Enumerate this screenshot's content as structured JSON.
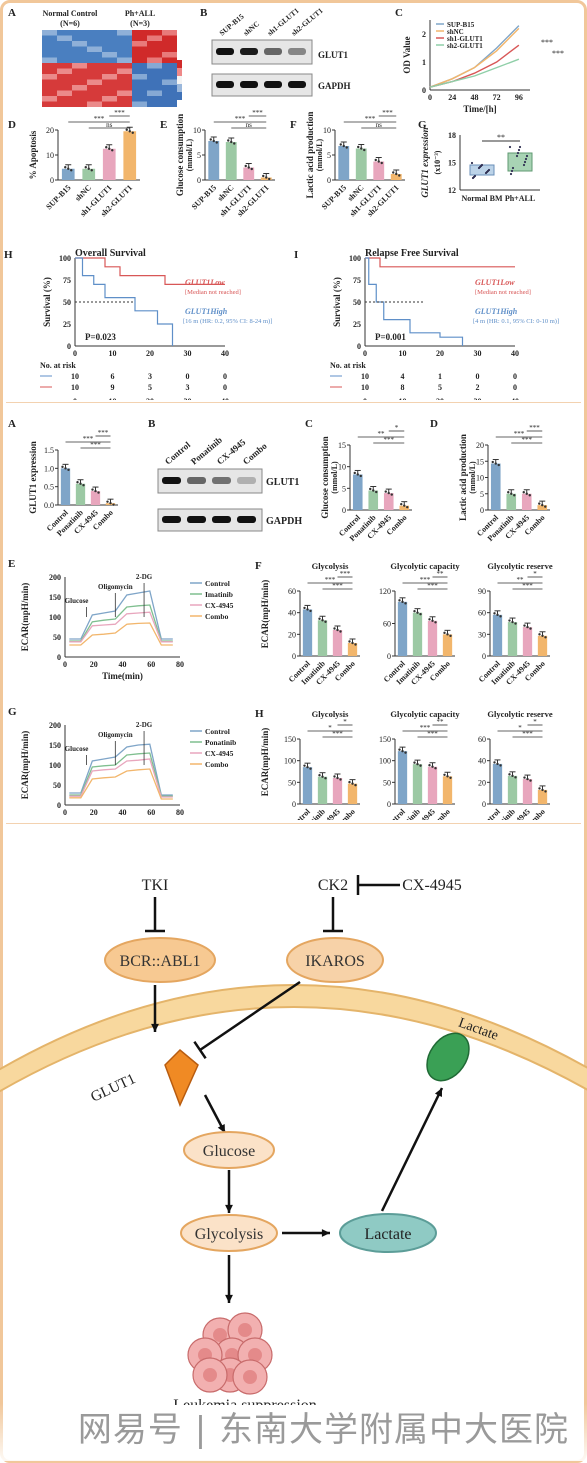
{
  "watermark": "网易号 | 东南大学附属中大医院",
  "colors": {
    "blue": "#7fa5c8",
    "green": "#9cc9a4",
    "pink": "#e8a6bd",
    "orange": "#f2b66c",
    "red": "#d85757",
    "bodyFill": "#f8d89e",
    "bodyStroke": "#e4b46a",
    "oval": "#f7c992",
    "lactate": "#8fcac4"
  },
  "fig1": {
    "A": {
      "letter": "A",
      "normal_label": "Normal Control",
      "normal_n": "(N=6)",
      "ph_label": "Ph+ALL",
      "ph_n": "(N=3)"
    },
    "B": {
      "letter": "B",
      "lanes": [
        "SUP-B15",
        "shNC",
        "sh1-GLUT1",
        "sh2-GLUT1"
      ],
      "proteins": [
        "GLUT1",
        "GAPDH"
      ]
    },
    "C": {
      "letter": "C",
      "ylabel": "OD Value",
      "xlabel": "Time/[h]",
      "xticks": [
        "0",
        "24",
        "48",
        "72",
        "96"
      ],
      "yticks": [
        "0",
        "1",
        "2"
      ],
      "legend": [
        "SUP-B15",
        "shNC",
        "sh1-GLUT1",
        "sh2-GLUT1"
      ],
      "sig": [
        "***",
        "***"
      ]
    },
    "D": {
      "letter": "D",
      "ylabel": "% Apoptosis",
      "categories": [
        "SUP-B15",
        "shNC",
        "sh1-GLUT1",
        "sh2-GLUT1"
      ],
      "yticks": [
        "0",
        "10",
        "20"
      ],
      "values": [
        4.5,
        4.5,
        12.5,
        19.5
      ],
      "sig": [
        "ns",
        "***",
        "***"
      ]
    },
    "E": {
      "letter": "E",
      "ylabel": "Glucose consumption",
      "ylabel2": "(mmol/L)",
      "categories": [
        "SUP-B15",
        "shNC",
        "sh1-GLUT1",
        "sh2-GLUT1"
      ],
      "yticks": [
        "0",
        "5",
        "10"
      ],
      "values": [
        7.8,
        7.6,
        2.5,
        0.5
      ],
      "sig": [
        "ns",
        "***",
        "***"
      ]
    },
    "F": {
      "letter": "F",
      "ylabel": "Lactic acid production",
      "ylabel2": "(mmol/L)",
      "categories": [
        "SUP-B15",
        "shNC",
        "sh1-GLUT1",
        "sh2-GLUT1"
      ],
      "yticks": [
        "0",
        "5",
        "10"
      ],
      "values": [
        6.8,
        6.3,
        3.7,
        1.2
      ],
      "sig": [
        "ns",
        "***",
        "***"
      ]
    },
    "G": {
      "letter": "G",
      "ylabel": "GLUT1 expression",
      "ylabel2": "(x10⁻³)",
      "categories": [
        "Normal BM",
        "Ph+ALL"
      ],
      "yticks": [
        "12",
        "15",
        "18"
      ],
      "sig": "**"
    },
    "H": {
      "letter": "H",
      "title": "Overall Survival",
      "ylabel": "Survival (%)",
      "xlabel": "Months",
      "low_label": "GLUT1",
      "low_sup": "Low",
      "low_sub": "[Median not reached]",
      "high_label": "GLUT1",
      "high_sup": "High",
      "high_sub": "[16 m (HR: 0.2, 95% CI: 8-24 m)]",
      "p": "P=0.023",
      "xticks": [
        "0",
        "10",
        "20",
        "30",
        "40"
      ],
      "yticks": [
        "0",
        "25",
        "50",
        "75",
        "100"
      ],
      "risk_title": "No. at risk",
      "risk_rows": [
        [
          "10",
          "6",
          "3",
          "0",
          "0"
        ],
        [
          "10",
          "9",
          "5",
          "3",
          "0"
        ]
      ]
    },
    "I": {
      "letter": "I",
      "title": "Relapse Free Survival",
      "ylabel": "Survival (%)",
      "xlabel": "Months",
      "low_label": "GLUT1",
      "low_sup": "Low",
      "low_sub": "[Median not reached]",
      "high_label": "GLUT1",
      "high_sup": "High",
      "high_sub": "[4 m (HR: 0.1, 95% CI: 0-10 m)]",
      "p": "P=0.001",
      "xticks": [
        "0",
        "10",
        "20",
        "30",
        "40"
      ],
      "yticks": [
        "0",
        "25",
        "50",
        "75",
        "100"
      ],
      "risk_title": "No. at risk",
      "risk_rows": [
        [
          "10",
          "4",
          "1",
          "0",
          "0"
        ],
        [
          "10",
          "8",
          "5",
          "2",
          "0"
        ]
      ]
    }
  },
  "fig2": {
    "A": {
      "letter": "A",
      "ylabel": "GLUT1 expression",
      "categories": [
        "Control",
        "Ponatinib",
        "CX-4945",
        "Combo"
      ],
      "yticks": [
        "0.0",
        "0.5",
        "1.0",
        "1.5"
      ],
      "values": [
        1.0,
        0.58,
        0.38,
        0.05
      ],
      "sig": [
        "***",
        "***",
        "***"
      ]
    },
    "B": {
      "letter": "B",
      "lanes": [
        "Control",
        "Ponatinib",
        "CX-4945",
        "Combo"
      ],
      "proteins": [
        "GLUT1",
        "GAPDH"
      ]
    },
    "C": {
      "letter": "C",
      "ylabel": "Glucose consumption",
      "ylabel2": "(mmol/L)",
      "categories": [
        "Control",
        "Ponatinib",
        "CX-4945",
        "Combo"
      ],
      "yticks": [
        "0",
        "5",
        "10",
        "15"
      ],
      "values": [
        8.2,
        4.5,
        3.9,
        1.0
      ],
      "sig": [
        "***",
        "**",
        "*"
      ]
    },
    "D": {
      "letter": "D",
      "ylabel": "Lactic acid production",
      "ylabel2": "(mmol/L)",
      "categories": [
        "Control",
        "Ponatinib",
        "CX-4945",
        "Combo"
      ],
      "yticks": [
        "0",
        "5",
        "10",
        "15",
        "20"
      ],
      "values": [
        14.3,
        5.0,
        5.0,
        1.5
      ],
      "sig": [
        "***",
        "***",
        "***"
      ]
    },
    "E": {
      "letter": "E",
      "ylabel": "ECAR(mpH/min)",
      "xlabel": "Time(min)",
      "xticks": [
        "0",
        "20",
        "40",
        "60",
        "80"
      ],
      "yticks": [
        "0",
        "50",
        "100",
        "150",
        "200"
      ],
      "legend": [
        "Control",
        "Imatinib",
        "CX-4945",
        "Combo"
      ],
      "annotations": [
        "Glucose",
        "Oligomycin",
        "2-DG"
      ]
    },
    "F": {
      "letter": "F",
      "ylabel": "ECAR(mpH/min)",
      "categories": [
        "Control",
        "Imatinib",
        "CX-4945",
        "Combo"
      ],
      "panels": [
        {
          "title": "Glycolysis",
          "yticks": [
            "0",
            "20",
            "40",
            "60"
          ],
          "ymax": 60,
          "values": [
            43,
            33,
            24,
            12
          ],
          "sig": [
            "***",
            "***",
            "***"
          ]
        },
        {
          "title": "Glycolytic capacity",
          "yticks": [
            "0",
            "60",
            "120"
          ],
          "ymax": 120,
          "values": [
            100,
            80,
            65,
            40
          ],
          "sig": [
            "***",
            "***",
            "**"
          ]
        },
        {
          "title": "Glycolytic reserve",
          "yticks": [
            "0",
            "30",
            "60",
            "90"
          ],
          "ymax": 90,
          "values": [
            57,
            47,
            40,
            28
          ],
          "sig": [
            "***",
            "**",
            "*"
          ]
        }
      ]
    },
    "G": {
      "letter": "G",
      "ylabel": "ECAR(mpH/min)",
      "xlabel": "Time(min)",
      "xticks": [
        "0",
        "20",
        "40",
        "60",
        "80"
      ],
      "yticks": [
        "0",
        "50",
        "100",
        "150",
        "200"
      ],
      "legend": [
        "Control",
        "Ponatinib",
        "CX-4945",
        "Combo"
      ],
      "annotations": [
        "Glucose",
        "Oligomycin",
        "2-DG"
      ]
    },
    "H": {
      "letter": "H",
      "ylabel": "ECAR(mpH/min)",
      "categories": [
        "Control",
        "Ponatinib",
        "CX-4945",
        "Combo"
      ],
      "panels": [
        {
          "title": "Glycolysis",
          "yticks": [
            "0",
            "50",
            "100",
            "150"
          ],
          "ymax": 150,
          "values": [
            85,
            63,
            60,
            47
          ],
          "sig": [
            "***",
            "*",
            "*"
          ]
        },
        {
          "title": "Glycolytic capacity",
          "yticks": [
            "0",
            "50",
            "100",
            "150"
          ],
          "ymax": 150,
          "values": [
            122,
            92,
            86,
            64
          ],
          "sig": [
            "***",
            "***",
            "**"
          ]
        },
        {
          "title": "Glycolytic reserve",
          "yticks": [
            "0",
            "20",
            "40",
            "60"
          ],
          "ymax": 60,
          "values": [
            37,
            26,
            23,
            13
          ],
          "sig": [
            "***",
            "*",
            "*"
          ]
        }
      ]
    }
  },
  "diagram": {
    "tki": "TKI",
    "ck2": "CK2",
    "cx": "CX-4945",
    "bcr": "BCR::ABL1",
    "ikaros": "IKAROS",
    "glut1": "GLUT1",
    "lactate_channel": "Lactate",
    "glucose": "Glucose",
    "glycolysis": "Glycolysis",
    "lactate": "Lactate",
    "suppression": "Leukemia suppression"
  },
  "chart_data": [
    {
      "panel": "Fig1-C",
      "type": "line",
      "x": [
        0,
        24,
        48,
        72,
        96
      ],
      "xlabel": "Time/[h]",
      "ylabel": "OD Value",
      "series": [
        {
          "name": "SUP-B15",
          "values": [
            0.1,
            0.4,
            0.8,
            1.5,
            2.3
          ]
        },
        {
          "name": "shNC",
          "values": [
            0.1,
            0.4,
            0.8,
            1.4,
            2.2
          ]
        },
        {
          "name": "sh1-GLUT1",
          "values": [
            0.1,
            0.3,
            0.6,
            1.0,
            1.6
          ]
        },
        {
          "name": "sh2-GLUT1",
          "values": [
            0.1,
            0.3,
            0.5,
            0.8,
            1.1
          ]
        }
      ]
    },
    {
      "panel": "Fig1-D",
      "type": "bar",
      "categories": [
        "SUP-B15",
        "shNC",
        "sh1-GLUT1",
        "sh2-GLUT1"
      ],
      "values": [
        4.5,
        4.5,
        12.5,
        19.5
      ],
      "ylabel": "% Apoptosis"
    },
    {
      "panel": "Fig1-E",
      "type": "bar",
      "categories": [
        "SUP-B15",
        "shNC",
        "sh1-GLUT1",
        "sh2-GLUT1"
      ],
      "values": [
        7.8,
        7.6,
        2.5,
        0.5
      ],
      "ylabel": "Glucose consumption (mmol/L)"
    },
    {
      "panel": "Fig1-F",
      "type": "bar",
      "categories": [
        "SUP-B15",
        "shNC",
        "sh1-GLUT1",
        "sh2-GLUT1"
      ],
      "values": [
        6.8,
        6.3,
        3.7,
        1.2
      ],
      "ylabel": "Lactic acid production (mmol/L)"
    },
    {
      "panel": "Fig2-A",
      "type": "bar",
      "categories": [
        "Control",
        "Ponatinib",
        "CX-4945",
        "Combo"
      ],
      "values": [
        1.0,
        0.58,
        0.38,
        0.05
      ],
      "ylabel": "GLUT1 expression"
    },
    {
      "panel": "Fig2-C",
      "type": "bar",
      "categories": [
        "Control",
        "Ponatinib",
        "CX-4945",
        "Combo"
      ],
      "values": [
        8.2,
        4.5,
        3.9,
        1.0
      ],
      "ylabel": "Glucose consumption (mmol/L)"
    },
    {
      "panel": "Fig2-D",
      "type": "bar",
      "categories": [
        "Control",
        "Ponatinib",
        "CX-4945",
        "Combo"
      ],
      "values": [
        14.3,
        5.0,
        5.0,
        1.5
      ],
      "ylabel": "Lactic acid production (mmol/L)"
    },
    {
      "panel": "Fig2-E",
      "type": "line",
      "xlabel": "Time(min)",
      "ylabel": "ECAR(mpH/min)",
      "x": [
        3,
        11,
        19,
        27,
        35,
        43,
        51,
        59,
        67,
        75
      ],
      "series": [
        {
          "name": "Control",
          "values": [
            45,
            45,
            105,
            110,
            115,
            155,
            160,
            165,
            45,
            45
          ]
        },
        {
          "name": "Imatinib",
          "values": [
            40,
            40,
            88,
            92,
            95,
            125,
            128,
            130,
            40,
            40
          ]
        },
        {
          "name": "CX-4945",
          "values": [
            38,
            38,
            78,
            80,
            82,
            108,
            110,
            112,
            38,
            38
          ]
        },
        {
          "name": "Combo",
          "values": [
            30,
            30,
            55,
            57,
            60,
            82,
            84,
            85,
            30,
            30
          ]
        }
      ]
    },
    {
      "panel": "Fig2-G",
      "type": "line",
      "xlabel": "Time(min)",
      "ylabel": "ECAR(mpH/min)",
      "x": [
        3,
        11,
        19,
        27,
        35,
        43,
        51,
        59,
        67,
        75
      ],
      "series": [
        {
          "name": "Control",
          "values": [
            30,
            30,
            110,
            115,
            120,
            145,
            150,
            152,
            25,
            25
          ]
        },
        {
          "name": "Ponatinib",
          "values": [
            25,
            25,
            95,
            98,
            100,
            125,
            128,
            130,
            22,
            22
          ]
        },
        {
          "name": "CX-4945",
          "values": [
            22,
            22,
            85,
            88,
            90,
            110,
            112,
            115,
            20,
            20
          ]
        },
        {
          "name": "Combo",
          "values": [
            18,
            18,
            65,
            68,
            70,
            85,
            88,
            90,
            15,
            15
          ]
        }
      ]
    }
  ]
}
